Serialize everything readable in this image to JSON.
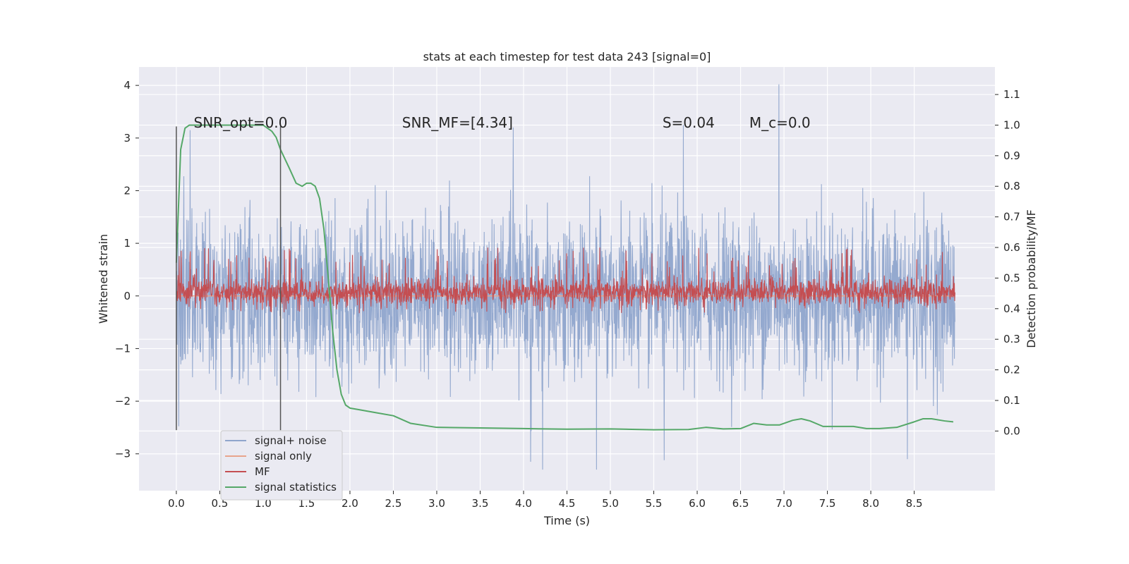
{
  "chart_data": {
    "type": "line",
    "title": "stats at each timestep for test data 243 [signal=0]",
    "xlabel": "Time (s)",
    "ylabel": "Whitened strain",
    "y2label": "Detection probability/MF",
    "xlim": [
      -0.43,
      9.43
    ],
    "ylim": [
      -3.7,
      4.35
    ],
    "y2lim": [
      -0.195,
      1.19
    ],
    "xticks": [
      0.0,
      0.5,
      1.0,
      1.5,
      2.0,
      2.5,
      3.0,
      3.5,
      4.0,
      4.5,
      5.0,
      5.5,
      6.0,
      6.5,
      7.0,
      7.5,
      8.0,
      8.5
    ],
    "xtick_labels": [
      "0.0",
      "0.5",
      "1.0",
      "1.5",
      "2.0",
      "2.5",
      "3.0",
      "3.5",
      "4.0",
      "4.5",
      "5.0",
      "5.5",
      "6.0",
      "6.5",
      "7.0",
      "7.5",
      "8.0",
      "8.5"
    ],
    "yticks": [
      4,
      3,
      2,
      1,
      0,
      -1,
      -2,
      -3
    ],
    "ytick_labels": [
      "4",
      "3",
      "2",
      "1",
      "0",
      "−1",
      "−2",
      "−3"
    ],
    "y2ticks": [
      1.1,
      1.0,
      0.9,
      0.8,
      0.7,
      0.6,
      0.5,
      0.4,
      0.3,
      0.2,
      0.1,
      0.0
    ],
    "y2tick_labels": [
      "1.1",
      "1.0",
      "0.9",
      "0.8",
      "0.7",
      "0.6",
      "0.5",
      "0.4",
      "0.3",
      "0.2",
      "0.1",
      "0.0"
    ],
    "grid": true,
    "legend_position": "lower-left",
    "annotations": [
      {
        "text": "SNR_opt=0.0",
        "x": 0.2,
        "y": 3.2
      },
      {
        "text": "SNR_MF=[4.34]",
        "x": 2.6,
        "y": 3.2
      },
      {
        "text": "S=0.04",
        "x": 5.6,
        "y": 3.2
      },
      {
        "text": "M_c=0.0",
        "x": 6.6,
        "y": 3.2
      }
    ],
    "vlines": [
      {
        "x": 0.0,
        "y0": -2.55,
        "y1": 3.22
      },
      {
        "x": 1.2,
        "y0": -2.55,
        "y1": 3.22
      }
    ],
    "series": [
      {
        "name": "signal+ noise",
        "axis": "left",
        "color": "#8fa5cc",
        "style": "noise",
        "x_range": [
          0.0,
          8.97
        ],
        "sigma": 0.75,
        "peaks": [
          {
            "x": 0.16,
            "y": 3.15
          },
          {
            "x": 3.88,
            "y": 3.2
          },
          {
            "x": 5.84,
            "y": 3.25
          },
          {
            "x": 6.94,
            "y": 4.02
          },
          {
            "x": 4.08,
            "y": -3.15
          },
          {
            "x": 4.22,
            "y": -3.3
          },
          {
            "x": 4.84,
            "y": -3.3
          },
          {
            "x": 5.62,
            "y": -3.12
          },
          {
            "x": 8.42,
            "y": -3.1
          }
        ]
      },
      {
        "name": "signal only",
        "axis": "left",
        "color": "#e8a48c",
        "style": "flat",
        "x_range": [
          0.0,
          8.97
        ],
        "value": 0.0
      },
      {
        "name": "MF",
        "axis": "right",
        "color": "#c44e52",
        "style": "band",
        "x_range": [
          0.0,
          8.97
        ],
        "base": 0.455,
        "peak_max": 0.6
      },
      {
        "name": "signal statistics",
        "axis": "right",
        "color": "#55a868",
        "style": "curve",
        "x": [
          0.0,
          0.05,
          0.1,
          0.15,
          0.2,
          0.3,
          0.5,
          0.7,
          0.9,
          1.0,
          1.05,
          1.1,
          1.15,
          1.2,
          1.3,
          1.38,
          1.45,
          1.5,
          1.55,
          1.6,
          1.65,
          1.7,
          1.75,
          1.8,
          1.85,
          1.9,
          1.95,
          2.0,
          2.1,
          2.3,
          2.5,
          2.7,
          3.0,
          3.5,
          4.0,
          4.5,
          5.0,
          5.5,
          5.9,
          6.1,
          6.3,
          6.5,
          6.65,
          6.8,
          6.95,
          7.1,
          7.2,
          7.3,
          7.45,
          7.6,
          7.8,
          7.95,
          8.1,
          8.3,
          8.5,
          8.6,
          8.7,
          8.85,
          8.95
        ],
        "y": [
          0.55,
          0.92,
          0.99,
          1.0,
          1.0,
          1.0,
          1.0,
          1.0,
          1.0,
          1.0,
          0.99,
          0.98,
          0.96,
          0.92,
          0.86,
          0.81,
          0.8,
          0.81,
          0.81,
          0.8,
          0.76,
          0.66,
          0.5,
          0.33,
          0.2,
          0.12,
          0.085,
          0.075,
          0.07,
          0.06,
          0.05,
          0.025,
          0.012,
          0.01,
          0.008,
          0.006,
          0.007,
          0.004,
          0.005,
          0.012,
          0.007,
          0.008,
          0.025,
          0.02,
          0.02,
          0.035,
          0.04,
          0.033,
          0.015,
          0.015,
          0.015,
          0.008,
          0.008,
          0.012,
          0.03,
          0.04,
          0.04,
          0.033,
          0.03
        ]
      }
    ]
  }
}
